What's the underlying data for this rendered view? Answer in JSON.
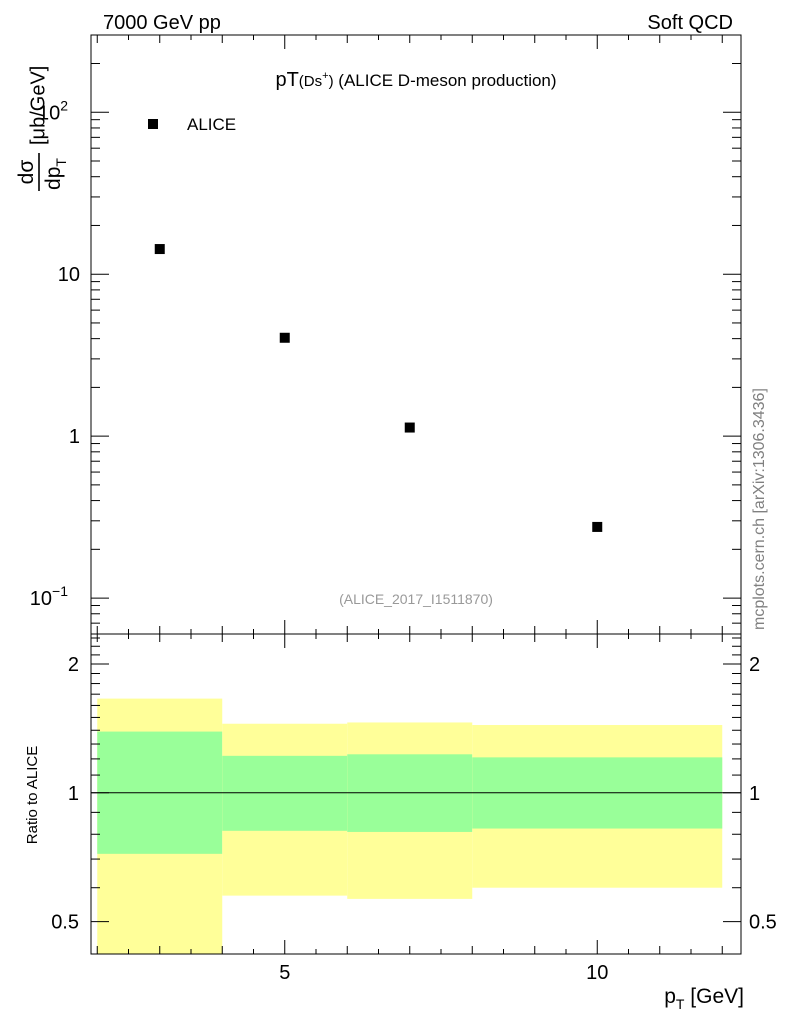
{
  "header": {
    "left": "7000 GeV pp",
    "right": "Soft QCD"
  },
  "watermark": "mcplots.cern.ch [arXiv:1306.3436]",
  "chart_data": [
    {
      "type": "scatter",
      "title_main": "pT",
      "title_particle": "(Ds",
      "title_sup": "+",
      "title_close": ")",
      "title_rest": " (ALICE D-meson production)",
      "ylabel": {
        "frac_num": "dσ",
        "frac_den_main": "dp",
        "frac_den_sub": "T",
        "unit": "[μb/GeV]"
      },
      "yscale": "log",
      "ylim": [
        0.06,
        300
      ],
      "xlim": [
        1.9,
        12.3
      ],
      "y_ticks": [
        {
          "value": 0.1,
          "base": "10",
          "exp": "−1"
        },
        {
          "value": 1,
          "base": "1",
          "exp": ""
        },
        {
          "value": 10,
          "base": "10",
          "exp": ""
        },
        {
          "value": 100,
          "base": "10",
          "exp": "2"
        }
      ],
      "series": [
        {
          "name": "ALICE",
          "color": "#000000",
          "x": [
            3,
            5,
            7,
            10
          ],
          "y": [
            14.3,
            4.05,
            1.13,
            0.275
          ]
        }
      ],
      "legend_position": "top-left",
      "reference": "(ALICE_2017_I1511870)"
    },
    {
      "type": "area",
      "ylabel": "Ratio to ALICE",
      "xlabel_main": "p",
      "xlabel_sub": "T",
      "xlabel_unit": " [GeV]",
      "yscale": "log",
      "ylim": [
        0.42,
        2.35
      ],
      "xlim": [
        1.9,
        12.3
      ],
      "x_ticks": [
        {
          "value": 5,
          "label": "5"
        },
        {
          "value": 10,
          "label": "10"
        }
      ],
      "y_ticks": [
        {
          "value": 0.5,
          "label": "0.5"
        },
        {
          "value": 1,
          "label": "1"
        },
        {
          "value": 2,
          "label": "2"
        }
      ],
      "bands": [
        {
          "x_low": 2,
          "x_high": 4,
          "stat_low": 0.72,
          "stat_high": 1.39,
          "total_low": 0.3,
          "total_high": 1.66
        },
        {
          "x_low": 4,
          "x_high": 6,
          "stat_low": 0.815,
          "stat_high": 1.22,
          "total_low": 0.575,
          "total_high": 1.45
        },
        {
          "x_low": 6,
          "x_high": 8,
          "stat_low": 0.81,
          "stat_high": 1.23,
          "total_low": 0.565,
          "total_high": 1.46
        },
        {
          "x_low": 8,
          "x_high": 12,
          "stat_low": 0.825,
          "stat_high": 1.21,
          "total_low": 0.6,
          "total_high": 1.44
        }
      ],
      "reference_line": 1,
      "colors": {
        "stat": "#99ff99",
        "total": "#ffff99"
      }
    }
  ]
}
